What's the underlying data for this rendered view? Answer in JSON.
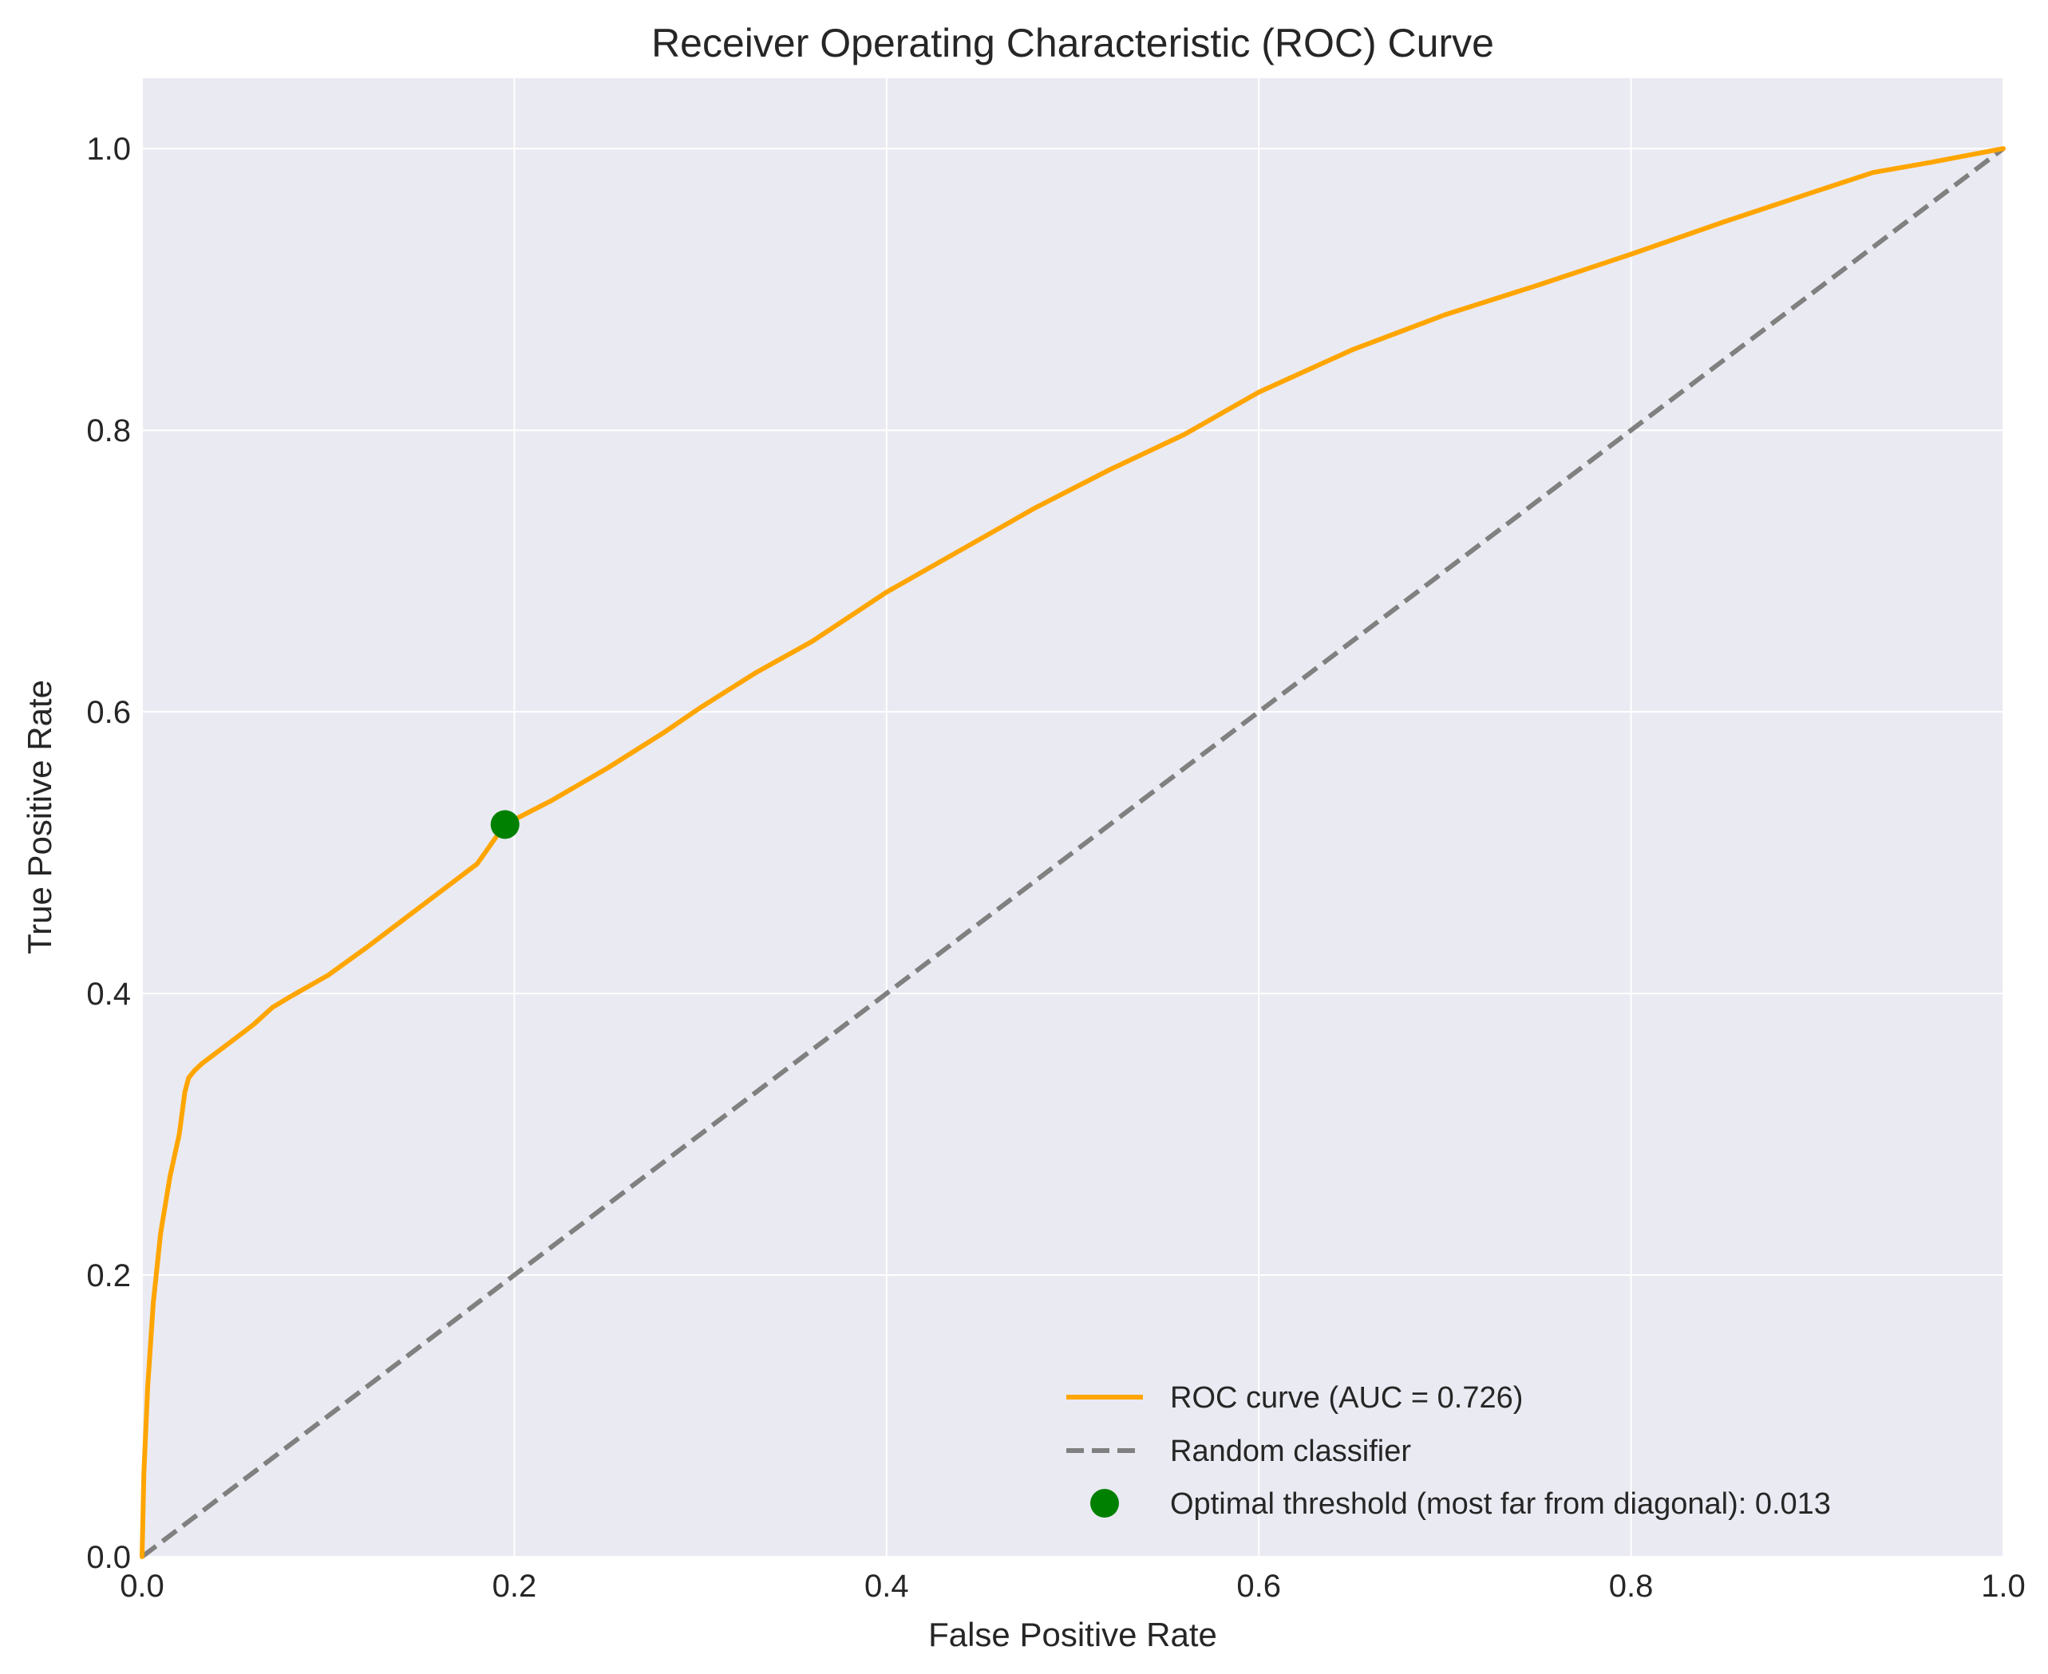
{
  "chart_data": {
    "type": "line",
    "title": "Receiver Operating Characteristic (ROC) Curve",
    "xlabel": "False Positive Rate",
    "ylabel": "True Positive Rate",
    "xlim": [
      0.0,
      1.0
    ],
    "ylim": [
      0.0,
      1.05
    ],
    "xticks": [
      "0.0",
      "0.2",
      "0.4",
      "0.6",
      "0.8",
      "1.0"
    ],
    "yticks": [
      "0.0",
      "0.2",
      "0.4",
      "0.6",
      "0.8",
      "1.0"
    ],
    "xtick_values": [
      0.0,
      0.2,
      0.4,
      0.6,
      0.8,
      1.0
    ],
    "ytick_values": [
      0.0,
      0.2,
      0.4,
      0.6,
      0.8,
      1.0
    ],
    "grid": true,
    "legend_position": "bottom-right",
    "colors": {
      "plot_background": "#eaeaf2",
      "grid": "#ffffff",
      "roc": "#ffa500",
      "random": "#808080",
      "optimal": "#008000"
    },
    "series": [
      {
        "name": "ROC curve (AUC = 0.726)",
        "style": "solid",
        "x": [
          0.0,
          0.001,
          0.003,
          0.006,
          0.01,
          0.015,
          0.02,
          0.023,
          0.025,
          0.028,
          0.032,
          0.035,
          0.04,
          0.05,
          0.06,
          0.07,
          0.08,
          0.1,
          0.12,
          0.14,
          0.16,
          0.18,
          0.195,
          0.22,
          0.25,
          0.28,
          0.3,
          0.33,
          0.36,
          0.4,
          0.44,
          0.48,
          0.52,
          0.56,
          0.6,
          0.65,
          0.7,
          0.75,
          0.8,
          0.85,
          0.9,
          0.93,
          0.96,
          1.0
        ],
        "y": [
          0.0,
          0.06,
          0.12,
          0.18,
          0.23,
          0.27,
          0.3,
          0.33,
          0.34,
          0.345,
          0.35,
          0.353,
          0.358,
          0.368,
          0.378,
          0.39,
          0.398,
          0.413,
          0.432,
          0.452,
          0.472,
          0.492,
          0.52,
          0.537,
          0.56,
          0.585,
          0.603,
          0.628,
          0.65,
          0.685,
          0.715,
          0.745,
          0.772,
          0.797,
          0.827,
          0.857,
          0.882,
          0.903,
          0.925,
          0.948,
          0.97,
          0.983,
          0.99,
          1.0
        ]
      },
      {
        "name": "Random classifier",
        "style": "dashed",
        "x": [
          0.0,
          1.0
        ],
        "y": [
          0.0,
          1.0
        ]
      },
      {
        "name": "Optimal threshold (most far from diagonal): 0.013",
        "style": "marker",
        "x": [
          0.195
        ],
        "y": [
          0.52
        ]
      }
    ]
  }
}
